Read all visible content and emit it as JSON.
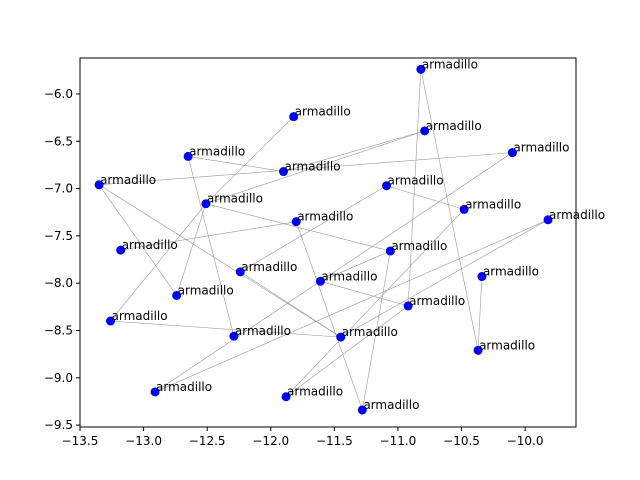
{
  "chart_data": {
    "type": "scatter",
    "title": "",
    "xlabel": "",
    "ylabel": "",
    "xlim": [
      -13.5,
      -9.6
    ],
    "ylim": [
      -9.52,
      -5.62
    ],
    "x_ticks": [
      -13.5,
      -13.0,
      -12.5,
      -12.0,
      -11.5,
      -11.0,
      -10.5,
      -10.0
    ],
    "x_tick_labels": [
      "−13.5",
      "−13.0",
      "−12.5",
      "−12.0",
      "−11.5",
      "−11.0",
      "−10.5",
      "−10.0"
    ],
    "y_ticks": [
      -6.0,
      -6.5,
      -7.0,
      -7.5,
      -8.0,
      -8.5,
      -9.0,
      -9.5
    ],
    "y_tick_labels": [
      "−6.0",
      "−6.5",
      "−7.0",
      "−7.5",
      "−8.0",
      "−8.5",
      "−9.0",
      "−9.5"
    ],
    "grid": false,
    "marker_color": "#0000ff",
    "edge_color": "#999999",
    "points": [
      {
        "x": -10.82,
        "y": -5.74,
        "label": "armadillo"
      },
      {
        "x": -11.82,
        "y": -6.24,
        "label": "armadillo"
      },
      {
        "x": -10.79,
        "y": -6.39,
        "label": "armadillo"
      },
      {
        "x": -12.65,
        "y": -6.66,
        "label": "armadillo"
      },
      {
        "x": -10.1,
        "y": -6.62,
        "label": "armadillo"
      },
      {
        "x": -11.9,
        "y": -6.82,
        "label": "armadillo"
      },
      {
        "x": -13.35,
        "y": -6.96,
        "label": "armadillo"
      },
      {
        "x": -11.09,
        "y": -6.97,
        "label": "armadillo"
      },
      {
        "x": -12.51,
        "y": -7.16,
        "label": "armadillo"
      },
      {
        "x": -10.48,
        "y": -7.22,
        "label": "armadillo"
      },
      {
        "x": -9.82,
        "y": -7.33,
        "label": "armadillo"
      },
      {
        "x": -11.8,
        "y": -7.35,
        "label": "armadillo"
      },
      {
        "x": -13.18,
        "y": -7.65,
        "label": "armadillo"
      },
      {
        "x": -11.06,
        "y": -7.66,
        "label": "armadillo"
      },
      {
        "x": -12.24,
        "y": -7.88,
        "label": "armadillo"
      },
      {
        "x": -10.34,
        "y": -7.93,
        "label": "armadillo"
      },
      {
        "x": -11.61,
        "y": -7.98,
        "label": "armadillo"
      },
      {
        "x": -12.74,
        "y": -8.13,
        "label": "armadillo"
      },
      {
        "x": -10.92,
        "y": -8.24,
        "label": "armadillo"
      },
      {
        "x": -13.26,
        "y": -8.4,
        "label": "armadillo"
      },
      {
        "x": -12.29,
        "y": -8.56,
        "label": "armadillo"
      },
      {
        "x": -11.45,
        "y": -8.57,
        "label": "armadillo"
      },
      {
        "x": -10.37,
        "y": -8.71,
        "label": "armadillo"
      },
      {
        "x": -12.91,
        "y": -9.15,
        "label": "armadillo"
      },
      {
        "x": -11.88,
        "y": -9.2,
        "label": "armadillo"
      },
      {
        "x": -11.28,
        "y": -9.34,
        "label": "armadillo"
      }
    ],
    "edges": [
      [
        0,
        18
      ],
      [
        0,
        22
      ],
      [
        1,
        8
      ],
      [
        2,
        8
      ],
      [
        2,
        5
      ],
      [
        3,
        5
      ],
      [
        3,
        20
      ],
      [
        4,
        6
      ],
      [
        4,
        23
      ],
      [
        6,
        21
      ],
      [
        6,
        17
      ],
      [
        7,
        9
      ],
      [
        7,
        14
      ],
      [
        8,
        17
      ],
      [
        8,
        19
      ],
      [
        10,
        21
      ],
      [
        10,
        23
      ],
      [
        11,
        12
      ],
      [
        11,
        25
      ],
      [
        13,
        16
      ],
      [
        13,
        25
      ],
      [
        14,
        21
      ],
      [
        15,
        22
      ],
      [
        16,
        18
      ],
      [
        18,
        24
      ],
      [
        19,
        21
      ],
      [
        13,
        8
      ],
      [
        9,
        24
      ]
    ]
  }
}
